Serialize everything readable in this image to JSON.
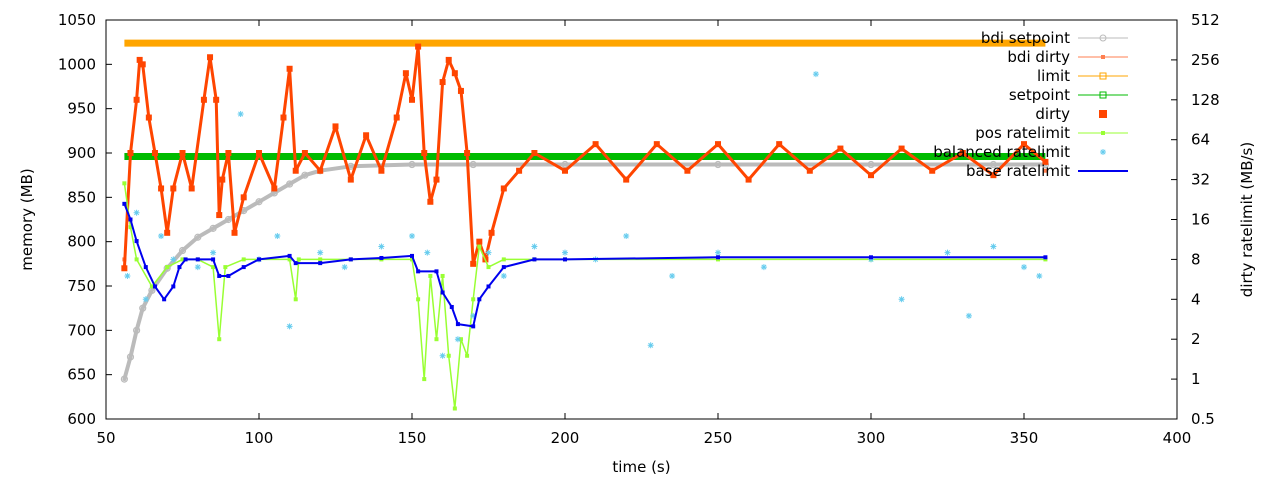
{
  "chart_data": {
    "type": "line",
    "xlabel": "time (s)",
    "ylabel": "memory (MB)",
    "y2label": "dirty ratelimit (MB/s)",
    "xlim": [
      50,
      400
    ],
    "ylim": [
      600,
      1050
    ],
    "y2lim": [
      0.5,
      512
    ],
    "y2scale": "log2",
    "x_ticks": [
      50,
      100,
      150,
      200,
      250,
      300,
      350,
      400
    ],
    "y_ticks": [
      600,
      650,
      700,
      750,
      800,
      850,
      900,
      950,
      1000,
      1050
    ],
    "y2_ticks": [
      "0.5",
      "1",
      "2",
      "4",
      "8",
      "16",
      "32",
      "64",
      "128",
      "256",
      "512"
    ],
    "grid": false,
    "legend_position": "top-right",
    "series": [
      {
        "name": "bdi setpoint",
        "axis": "y",
        "color": "#bbbbbb",
        "x": [
          56,
          58,
          60,
          62,
          65,
          70,
          75,
          80,
          85,
          90,
          95,
          100,
          105,
          110,
          115,
          120,
          130,
          150,
          170,
          200,
          250,
          300,
          340,
          357
        ],
        "y": [
          645,
          670,
          700,
          725,
          745,
          770,
          790,
          805,
          815,
          825,
          835,
          845,
          855,
          865,
          875,
          880,
          885,
          887,
          887,
          887,
          887,
          887,
          887,
          887
        ]
      },
      {
        "name": "bdi dirty",
        "axis": "y",
        "color": "#ff7f50",
        "x": [
          56,
          357
        ],
        "y": [
          780,
          880
        ]
      },
      {
        "name": "limit",
        "axis": "y",
        "color": "#ffa500",
        "x": [
          56,
          357
        ],
        "y": [
          1024,
          1024
        ]
      },
      {
        "name": "setpoint",
        "axis": "y",
        "color": "#00bb00",
        "x": [
          56,
          357
        ],
        "y": [
          896,
          896
        ]
      },
      {
        "name": "dirty",
        "axis": "y",
        "color": "#ff4500",
        "x": [
          56,
          58,
          60,
          61,
          62,
          64,
          66,
          68,
          70,
          72,
          75,
          78,
          82,
          84,
          86,
          87,
          88,
          90,
          92,
          95,
          100,
          105,
          108,
          110,
          112,
          115,
          120,
          125,
          130,
          135,
          140,
          145,
          148,
          150,
          152,
          154,
          156,
          158,
          160,
          162,
          164,
          166,
          168,
          170,
          172,
          174,
          176,
          180,
          185,
          190,
          200,
          210,
          220,
          230,
          240,
          250,
          260,
          270,
          280,
          290,
          300,
          310,
          320,
          330,
          340,
          350,
          357
        ],
        "y": [
          770,
          900,
          960,
          1005,
          1000,
          940,
          900,
          860,
          810,
          860,
          900,
          860,
          960,
          1008,
          960,
          830,
          870,
          900,
          810,
          850,
          900,
          860,
          940,
          995,
          880,
          900,
          880,
          930,
          870,
          920,
          880,
          940,
          990,
          960,
          1020,
          900,
          845,
          870,
          980,
          1005,
          990,
          970,
          900,
          775,
          800,
          780,
          810,
          860,
          880,
          900,
          880,
          910,
          870,
          910,
          880,
          910,
          870,
          910,
          880,
          905,
          875,
          905,
          880,
          900,
          875,
          910,
          890
        ]
      },
      {
        "name": "pos ratelimit",
        "axis": "y2",
        "color": "#99ff33",
        "x": [
          56,
          58,
          60,
          65,
          70,
          75,
          80,
          85,
          87,
          89,
          95,
          100,
          110,
          112,
          113,
          120,
          130,
          140,
          150,
          152,
          154,
          156,
          158,
          160,
          162,
          164,
          166,
          168,
          170,
          172,
          175,
          180,
          190,
          200,
          250,
          300,
          357
        ],
        "y": [
          30,
          14,
          8,
          5,
          7,
          8,
          8,
          7,
          2,
          7,
          8,
          8,
          8,
          4,
          8,
          8,
          8,
          8,
          8,
          4,
          1,
          6,
          2,
          6,
          1.5,
          0.6,
          2,
          1.5,
          4,
          10,
          7,
          8,
          8,
          8,
          8,
          8,
          8
        ]
      },
      {
        "name": "balanced ratelimit",
        "axis": "y2",
        "color": "#66ccee",
        "x": [
          57,
          60,
          63,
          68,
          72,
          80,
          85,
          94,
          100,
          106,
          110,
          120,
          128,
          140,
          150,
          155,
          160,
          165,
          170,
          175,
          180,
          190,
          200,
          210,
          220,
          228,
          235,
          250,
          265,
          282,
          300,
          310,
          325,
          332,
          340,
          350,
          355
        ],
        "y": [
          6,
          18,
          4,
          12,
          8,
          7,
          9,
          100,
          8,
          12,
          2.5,
          9,
          7,
          10,
          12,
          9,
          1.5,
          2,
          3,
          9,
          6,
          10,
          9,
          8,
          12,
          1.8,
          6,
          9,
          7,
          200,
          8,
          4,
          9,
          3,
          10,
          7,
          6
        ]
      },
      {
        "name": "base ratelimit",
        "axis": "y2",
        "color": "#0000ee",
        "x": [
          56,
          58,
          60,
          63,
          66,
          69,
          72,
          74,
          76,
          80,
          85,
          87,
          90,
          95,
          100,
          110,
          112,
          120,
          130,
          140,
          150,
          152,
          158,
          160,
          163,
          165,
          170,
          172,
          175,
          180,
          190,
          200,
          250,
          300,
          357
        ],
        "y": [
          21,
          16,
          11,
          7,
          5,
          4,
          5,
          7,
          8,
          8,
          8,
          6,
          6,
          7,
          8,
          8.5,
          7.5,
          7.5,
          8,
          8.2,
          8.5,
          6.5,
          6.5,
          4.5,
          3.5,
          2.6,
          2.5,
          4,
          5,
          7,
          8,
          8,
          8.3,
          8.3,
          8.3
        ]
      }
    ]
  }
}
